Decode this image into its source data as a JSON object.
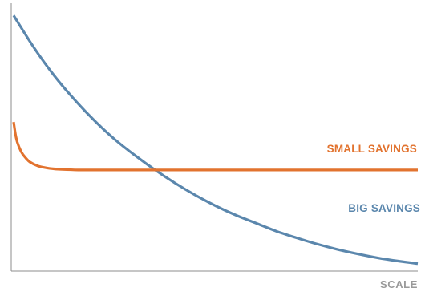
{
  "chart_data": {
    "type": "line",
    "title": "",
    "xlabel": "SCALE",
    "ylabel": "",
    "grid": false,
    "legend": "inline labels at right end of each line",
    "series": [
      {
        "name": "BIG SAVINGS",
        "color": "#5b87ad",
        "x": [
          0,
          5,
          10,
          15,
          20,
          25,
          30,
          35,
          40,
          45,
          50,
          55,
          60,
          65,
          70,
          75,
          80,
          85,
          90,
          95,
          100
        ],
        "y": [
          96,
          84,
          73.5,
          64.5,
          56.5,
          49.5,
          43.5,
          38,
          33,
          28.5,
          24.5,
          21,
          18,
          15,
          12.5,
          10.2,
          8.2,
          6.5,
          5,
          3.8,
          2.8
        ]
      },
      {
        "name": "SMALL SAVINGS",
        "color": "#e2732f",
        "x": [
          0,
          0.5,
          1,
          2,
          3,
          4,
          6,
          8,
          10,
          12,
          16,
          20,
          30,
          40,
          50,
          60,
          70,
          80,
          90,
          100
        ],
        "y": [
          56,
          51,
          48,
          44.5,
          42.5,
          41,
          39.5,
          38.8,
          38.4,
          38.2,
          38,
          38,
          38,
          38,
          38,
          38,
          38,
          38,
          38,
          38
        ]
      }
    ],
    "xlim": [
      0,
      100
    ],
    "ylim": [
      0,
      100
    ]
  }
}
